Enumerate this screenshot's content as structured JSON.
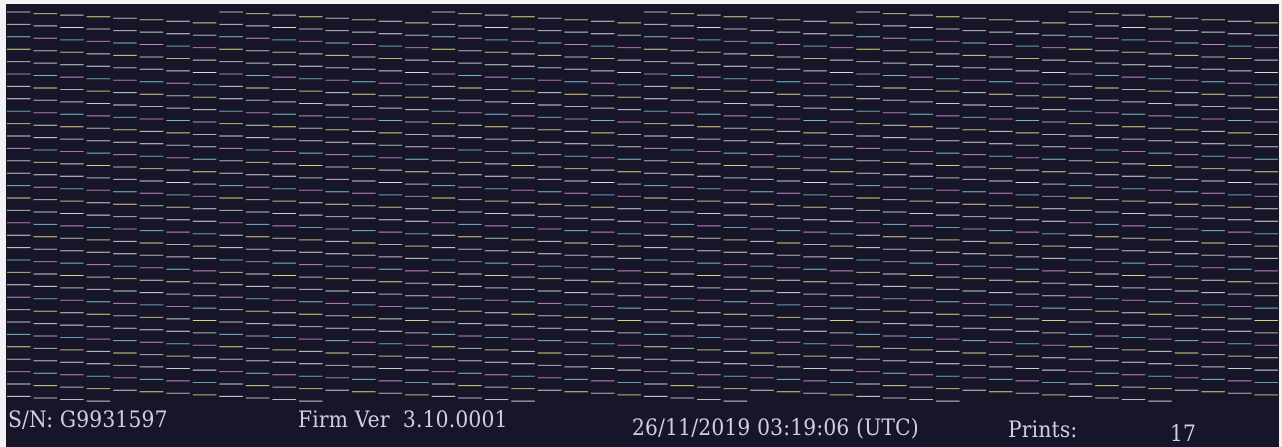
{
  "printout": {
    "serial": "S/N: G9931597",
    "firmware": "Firm Ver  3.10.0001",
    "datetime": "26/11/2019 03:19:06 (UTC)",
    "prints_label": "Prints:",
    "prints_count": "17"
  },
  "colors": {
    "paper": "#171628",
    "line_white": "#e8e8f0",
    "line_cyan": "#7fd6e6",
    "line_yellow": "#e6e08a",
    "line_magenta": "#d88ad8",
    "text": "#cfcfdf"
  }
}
